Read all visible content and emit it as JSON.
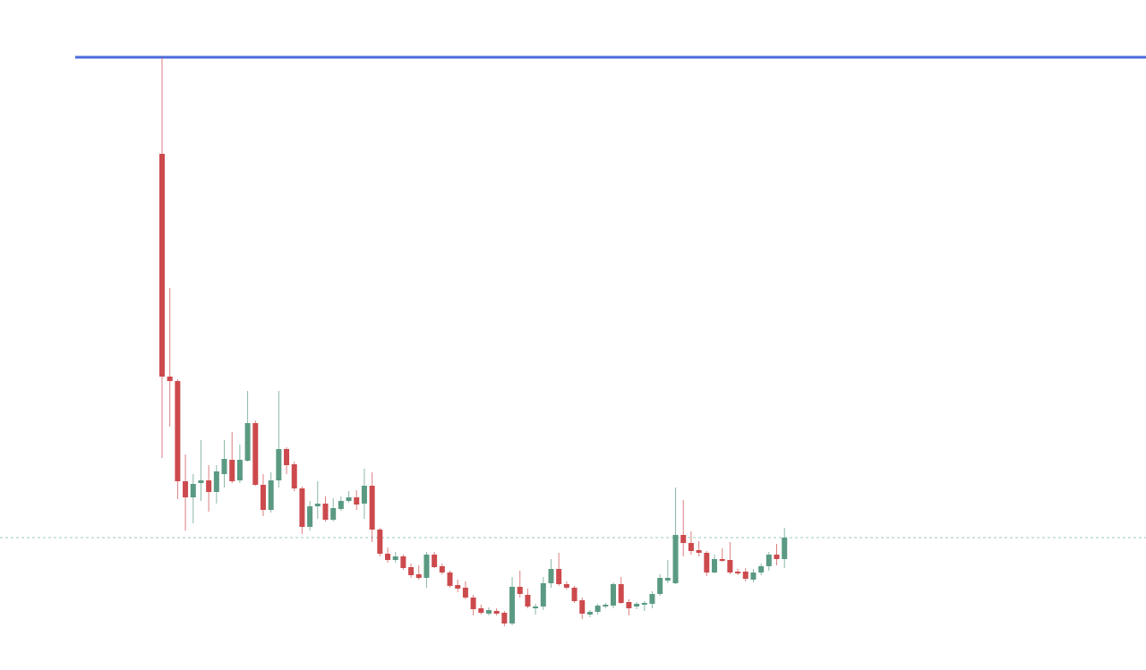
{
  "chart_data": {
    "type": "candlestick",
    "up_color": "#5b9a82",
    "down_color": "#cc4a4d",
    "ylim": [
      0,
      749
    ],
    "open": [
      577,
      328,
      323,
      211,
      193,
      209,
      212,
      199,
      219,
      235,
      212,
      234,
      276,
      207,
      179,
      212,
      247,
      230,
      203,
      160,
      183,
      186,
      168,
      180,
      189,
      193,
      186,
      206,
      157,
      130,
      123,
      127,
      115,
      107,
      103,
      129,
      116,
      109,
      95,
      92,
      81,
      69,
      63,
      66,
      64,
      52,
      93,
      84,
      69,
      71,
      97,
      113,
      96,
      92,
      78,
      62,
      65,
      71,
      72,
      96,
      76,
      71,
      73,
      74,
      85,
      100,
      97,
      151,
      142,
      134,
      131,
      109,
      124,
      123,
      110,
      110,
      101,
      109,
      116,
      129,
      124
    ],
    "high": [
      685,
      427,
      325,
      241,
      219,
      257,
      229,
      229,
      257,
      266,
      252,
      312,
      279,
      219,
      221,
      312,
      249,
      233,
      205,
      189,
      211,
      194,
      192,
      194,
      200,
      201,
      225,
      221,
      159,
      137,
      132,
      129,
      119,
      117,
      132,
      132,
      119,
      111,
      101,
      99,
      84,
      73,
      70,
      69,
      66,
      104,
      111,
      91,
      74,
      104,
      124,
      131,
      99,
      94,
      81,
      67,
      74,
      75,
      98,
      104,
      79,
      76,
      77,
      88,
      107,
      123,
      204,
      190,
      155,
      144,
      133,
      129,
      136,
      143,
      113,
      114,
      113,
      119,
      132,
      141,
      159
    ],
    "low": [
      237,
      272,
      191,
      156,
      164,
      189,
      177,
      186,
      204,
      209,
      209,
      233,
      206,
      172,
      176,
      204,
      219,
      200,
      152,
      156,
      169,
      166,
      166,
      178,
      187,
      179,
      169,
      143,
      127,
      120,
      120,
      112,
      103,
      101,
      92,
      114,
      107,
      92,
      87,
      79,
      61,
      62,
      61,
      61,
      49,
      50,
      81,
      69,
      62,
      67,
      92,
      94,
      90,
      75,
      57,
      59,
      62,
      69,
      69,
      74,
      61,
      68,
      66,
      69,
      83,
      97,
      96,
      127,
      129,
      127,
      105,
      108,
      121,
      107,
      106,
      99,
      98,
      106,
      111,
      117,
      114
    ],
    "close": [
      328,
      323,
      211,
      193,
      208,
      212,
      199,
      222,
      236,
      211,
      235,
      276,
      207,
      179,
      212,
      247,
      229,
      203,
      160,
      183,
      186,
      168,
      181,
      189,
      193,
      185,
      206,
      157,
      130,
      123,
      127,
      114,
      106,
      103,
      129,
      115,
      109,
      94,
      91,
      81,
      68,
      64,
      67,
      63,
      52,
      93,
      85,
      71,
      71,
      97,
      113,
      96,
      92,
      77,
      63,
      65,
      72,
      73,
      96,
      75,
      69,
      74,
      75,
      85,
      103,
      103,
      151,
      142,
      133,
      131,
      109,
      124,
      122,
      109,
      108,
      102,
      109,
      116,
      129,
      124,
      148
    ],
    "lines": [
      {
        "value": 685,
        "color": "#4a6cdb",
        "style": "solid"
      },
      {
        "value": 148,
        "color": "#9cc9c0",
        "style": "dashed"
      }
    ]
  }
}
